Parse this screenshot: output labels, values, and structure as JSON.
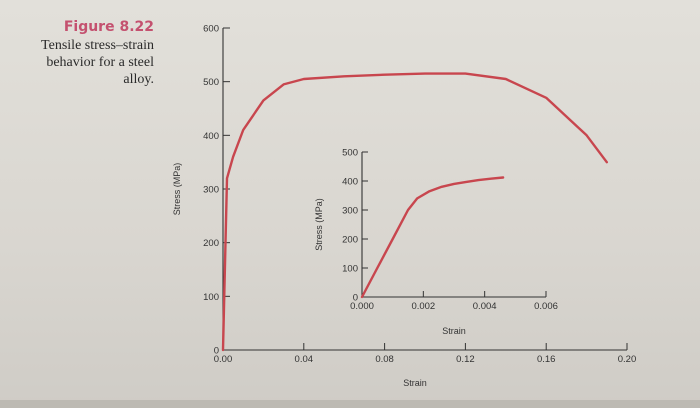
{
  "caption": {
    "figure_label": "Figure 8.22",
    "description_lines": [
      "Tensile stress–strain",
      "behavior for a steel",
      "alloy."
    ]
  },
  "colors": {
    "curve": "#c8464e",
    "axis": "#333333",
    "figure_label": "#c4516f"
  },
  "chart_data": [
    {
      "type": "line",
      "title": "",
      "xlabel": "Strain",
      "ylabel": "Stress (MPa)",
      "xlim": [
        0,
        0.2
      ],
      "ylim": [
        0,
        600
      ],
      "xticks": [
        "0.00",
        "0.04",
        "0.08",
        "0.12",
        "0.16",
        "0.20"
      ],
      "yticks": [
        "0",
        "100",
        "200",
        "300",
        "400",
        "500",
        "600"
      ],
      "grid": false,
      "legend": "none",
      "x": [
        0,
        0.002,
        0.005,
        0.01,
        0.02,
        0.03,
        0.04,
        0.06,
        0.08,
        0.1,
        0.12,
        0.14,
        0.16,
        0.18,
        0.19
      ],
      "y": [
        0,
        320,
        360,
        410,
        465,
        495,
        505,
        510,
        513,
        515,
        515,
        505,
        470,
        400,
        350
      ]
    },
    {
      "type": "line",
      "title": "",
      "xlabel": "Strain",
      "ylabel": "Stress (MPa)",
      "xlim": [
        0,
        0.006
      ],
      "ylim": [
        0,
        500
      ],
      "xticks": [
        "0.000",
        "0.002",
        "0.004",
        "0.006"
      ],
      "yticks": [
        "0",
        "100",
        "200",
        "300",
        "400",
        "500"
      ],
      "grid": false,
      "legend": "none",
      "x": [
        0,
        0.0005,
        0.001,
        0.0015,
        0.0018,
        0.0022,
        0.0026,
        0.003,
        0.0034,
        0.0038,
        0.0042,
        0.0046
      ],
      "y": [
        0,
        100,
        200,
        300,
        340,
        365,
        380,
        390,
        397,
        403,
        408,
        412
      ]
    }
  ]
}
